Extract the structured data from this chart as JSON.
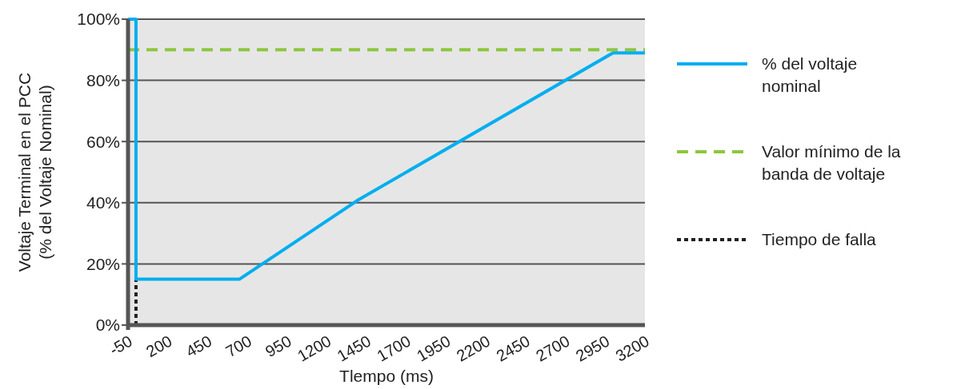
{
  "chart_data": {
    "type": "line",
    "xlabel": "Tlempo (ms)",
    "ylabel": "Voltaje Terminal en el PCC\n(% del Voltaje Nominal)",
    "xlim": [
      -50,
      3200
    ],
    "xticks": [
      -50,
      200,
      450,
      700,
      950,
      1200,
      1450,
      1700,
      1950,
      2200,
      2450,
      2700,
      2950,
      3200
    ],
    "ylim": [
      0,
      100
    ],
    "yticks": [
      {
        "value": 0,
        "label": "0%"
      },
      {
        "value": 20,
        "label": "20%"
      },
      {
        "value": 40,
        "label": "40%"
      },
      {
        "value": 60,
        "label": "60%"
      },
      {
        "value": 80,
        "label": "80%"
      },
      {
        "value": 100,
        "label": "100%"
      }
    ],
    "grid": "y",
    "legend": "right",
    "series": [
      {
        "name": "% del voltaje nominal",
        "color": "#00aeef",
        "line_style": "solid",
        "x": [
          -50,
          0,
          0,
          650,
          1400,
          3000,
          3200
        ],
        "values": [
          100,
          100,
          15,
          15,
          41,
          89,
          89
        ]
      },
      {
        "name": "Valor mínimo de la banda de voltaje",
        "color": "#8dc63f",
        "line_style": "dashed",
        "x": [
          -50,
          3200
        ],
        "values": [
          90,
          90
        ]
      },
      {
        "name": "Tiempo de falla",
        "color": "#231f20",
        "line_style": "dotted",
        "x": [
          0,
          0
        ],
        "values": [
          0,
          15
        ]
      }
    ]
  }
}
